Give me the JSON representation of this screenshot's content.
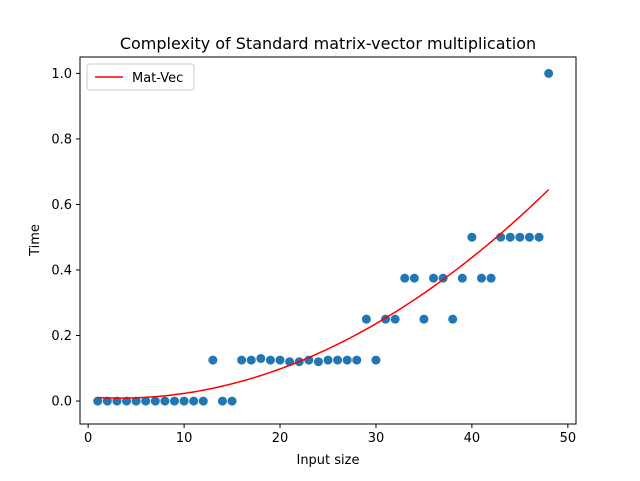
{
  "chart_data": {
    "type": "scatter",
    "title": "Complexity of Standard matrix-vector multiplication",
    "xlabel": "Input size",
    "ylabel": "Time",
    "xlim": [
      -0.85,
      50.85
    ],
    "ylim": [
      -0.07,
      1.05
    ],
    "x_ticks": [
      {
        "value": 0,
        "label": "0"
      },
      {
        "value": 10,
        "label": "10"
      },
      {
        "value": 20,
        "label": "20"
      },
      {
        "value": 30,
        "label": "30"
      },
      {
        "value": 40,
        "label": "40"
      },
      {
        "value": 50,
        "label": "50"
      }
    ],
    "y_ticks": [
      {
        "value": 0.0,
        "label": "0.0"
      },
      {
        "value": 0.2,
        "label": "0.2"
      },
      {
        "value": 0.4,
        "label": "0.4"
      },
      {
        "value": 0.6,
        "label": "0.6"
      },
      {
        "value": 0.8,
        "label": "0.8"
      },
      {
        "value": 1.0,
        "label": "1.0"
      }
    ],
    "grid": false,
    "legend": {
      "placement": "top-left",
      "entries": [
        "Mat-Vec"
      ]
    },
    "points": {
      "color": "#1f77b4",
      "x": [
        1,
        2,
        3,
        4,
        5,
        6,
        7,
        8,
        9,
        10,
        11,
        12,
        13,
        14,
        15,
        16,
        17,
        18,
        19,
        20,
        21,
        22,
        23,
        24,
        25,
        26,
        27,
        28,
        29,
        30,
        31,
        32,
        33,
        34,
        35,
        36,
        37,
        38,
        39,
        40,
        41,
        42,
        43,
        44,
        45,
        46,
        47,
        48
      ],
      "y": [
        0,
        0,
        0,
        0,
        0,
        0,
        0,
        0,
        0,
        0,
        0,
        0,
        0.125,
        0,
        0,
        0.125,
        0.125,
        0.13,
        0.125,
        0.125,
        0.12,
        0.12,
        0.125,
        0.12,
        0.125,
        0.125,
        0.125,
        0.125,
        0.25,
        0.125,
        0.25,
        0.25,
        0.375,
        0.375,
        0.25,
        0.375,
        0.375,
        0.25,
        0.375,
        0.5,
        0.375,
        0.375,
        0.5,
        0.5,
        0.5,
        0.5,
        0.5,
        1.0
      ]
    },
    "fit_line": {
      "name": "Mat-Vec",
      "color": "#ff0000",
      "x_range": [
        1,
        48
      ],
      "coefficients": {
        "a": 0.000318,
        "b": -0.00208,
        "c": 0.0124
      }
    }
  }
}
